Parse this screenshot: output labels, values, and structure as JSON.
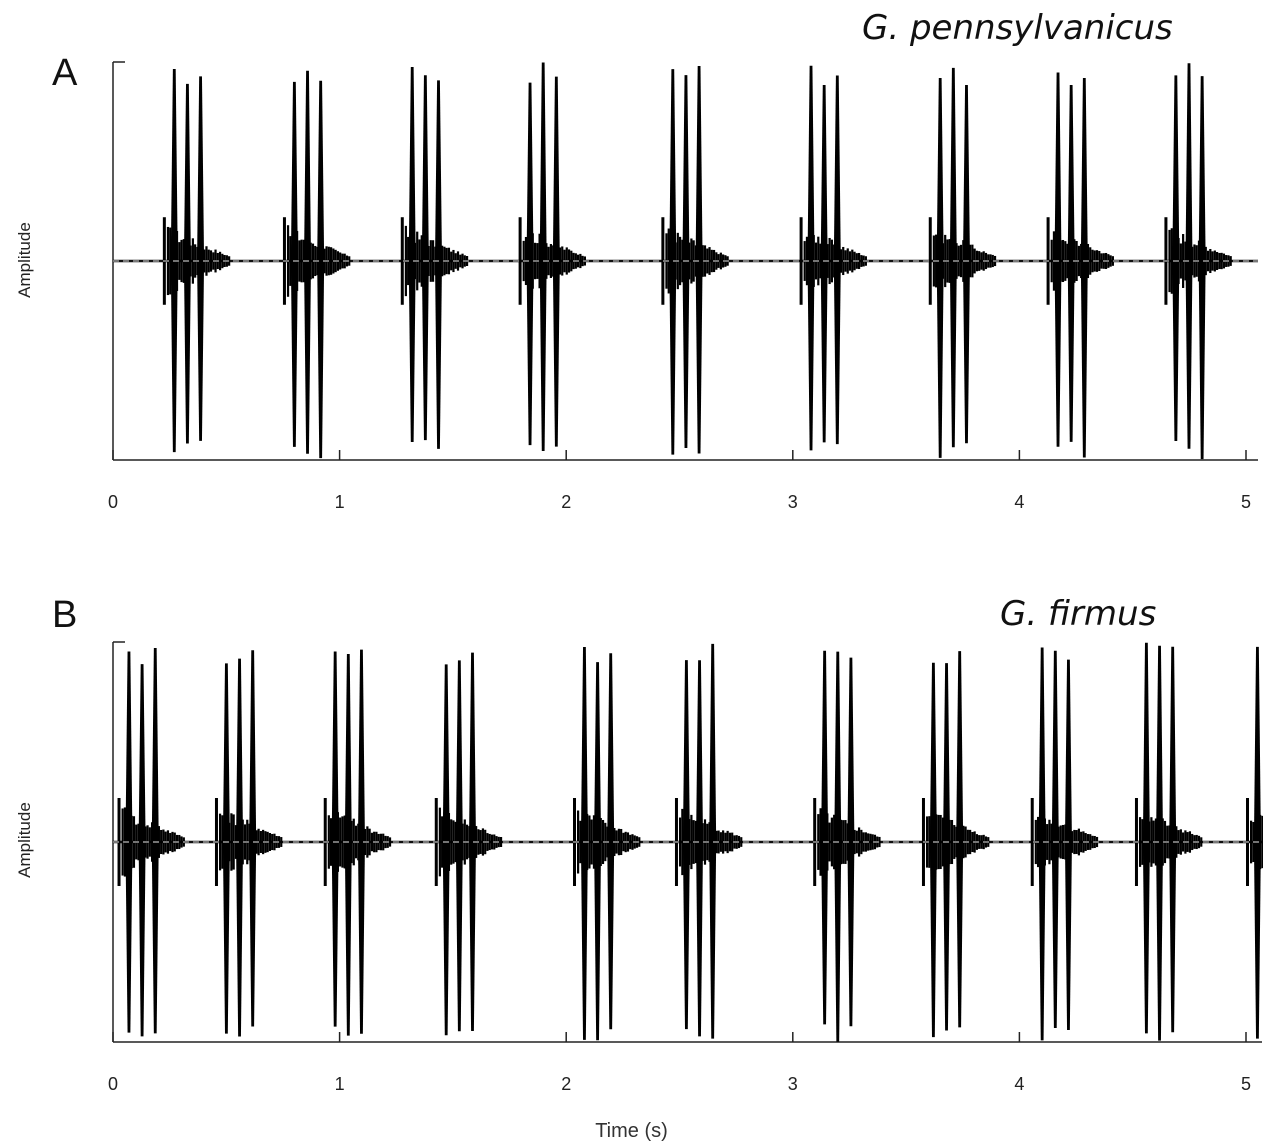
{
  "chart_data": [
    {
      "type": "line",
      "panel_label": "A",
      "title": "G. pennsylvanicus",
      "ylabel": "Amplitude",
      "xlabel": "Time (s)",
      "xlim": [
        0,
        5
      ],
      "x_ticks": [
        0,
        1,
        2,
        3,
        4,
        5
      ],
      "grid": false,
      "series": [
        {
          "chirp_starts_s": [
            0.22,
            0.75,
            1.27,
            1.79,
            2.42,
            3.03,
            3.6,
            4.12,
            4.64
          ],
          "pulses_per_chirp": 3
        }
      ]
    },
    {
      "type": "line",
      "panel_label": "B",
      "title": "G. firmus",
      "ylabel": "Amplitude",
      "xlabel": "Time (s)",
      "xlim": [
        0,
        5
      ],
      "x_ticks": [
        0,
        1,
        2,
        3,
        4,
        5
      ],
      "grid": false,
      "series": [
        {
          "chirp_starts_s": [
            0.02,
            0.45,
            0.93,
            1.42,
            2.03,
            2.48,
            3.09,
            3.57,
            4.05,
            4.51,
            5.0
          ],
          "pulses_per_chirp": 3
        }
      ]
    }
  ]
}
